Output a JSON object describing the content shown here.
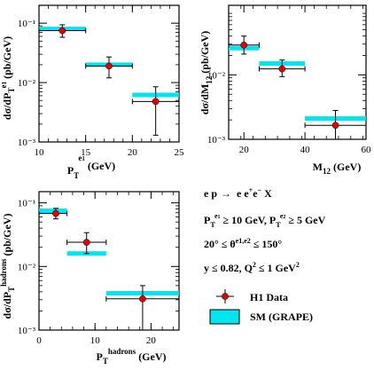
{
  "colors": {
    "data": "#e60000",
    "prediction": "#00e5f0",
    "axes": "#000000"
  },
  "chart_data": [
    {
      "id": "et1",
      "type": "scatter",
      "xscale": "linear",
      "yscale": "log",
      "xlim": [
        10,
        25
      ],
      "ylim": [
        0.001,
        0.2
      ],
      "x_ticks": [
        "10",
        "15",
        "20",
        "25"
      ],
      "y_ticks": [
        "10⁻³",
        "10⁻²",
        "10⁻¹"
      ],
      "xlabel": "P_T^{e1} (GeV)",
      "ylabel": "dσ/dP_T^{e1} (pb/GeV)",
      "series": [
        {
          "name": "H1 Data",
          "points": [
            {
              "x": 12.5,
              "y": 0.075,
              "xlo": 10,
              "xhi": 15,
              "ylo": 0.058,
              "yhi": 0.094
            },
            {
              "x": 17.5,
              "y": 0.019,
              "xlo": 15,
              "xhi": 20,
              "ylo": 0.012,
              "yhi": 0.027
            },
            {
              "x": 22.5,
              "y": 0.0048,
              "xlo": 20,
              "xhi": 25,
              "ylo": 0.0013,
              "yhi": 0.0085
            }
          ]
        },
        {
          "name": "SM (GRAPE)",
          "bins": [
            {
              "xlo": 10,
              "xhi": 15,
              "y": 0.08
            },
            {
              "xlo": 15,
              "xhi": 20,
              "y": 0.02
            },
            {
              "xlo": 20,
              "xhi": 25,
              "y": 0.0062
            }
          ]
        }
      ]
    },
    {
      "id": "m12",
      "type": "scatter",
      "xscale": "linear",
      "yscale": "log",
      "xlim": [
        15,
        60
      ],
      "ylim": [
        0.001,
        0.12
      ],
      "x_ticks": [
        "20",
        "40",
        "60"
      ],
      "y_ticks": [
        "10⁻³",
        "10⁻²"
      ],
      "xlabel": "M_12 (GeV)",
      "ylabel": "dσ/dM_12 (pb/GeV)",
      "series": [
        {
          "name": "H1 Data",
          "points": [
            {
              "x": 20,
              "y": 0.029,
              "xlo": 15,
              "xhi": 25,
              "ylo": 0.021,
              "yhi": 0.04
            },
            {
              "x": 32.5,
              "y": 0.0124,
              "xlo": 25,
              "xhi": 40,
              "ylo": 0.0094,
              "yhi": 0.017
            },
            {
              "x": 50,
              "y": 0.00165,
              "xlo": 40,
              "xhi": 60,
              "ylo": 0.001,
              "yhi": 0.0028
            }
          ]
        },
        {
          "name": "SM (GRAPE)",
          "bins": [
            {
              "xlo": 15,
              "xhi": 25,
              "y": 0.026
            },
            {
              "xlo": 25,
              "xhi": 40,
              "y": 0.015
            },
            {
              "xlo": 40,
              "xhi": 60,
              "y": 0.0021
            }
          ]
        }
      ]
    },
    {
      "id": "had",
      "type": "scatter",
      "xscale": "linear",
      "yscale": "log",
      "xlim": [
        0,
        25
      ],
      "ylim": [
        0.001,
        0.15
      ],
      "x_ticks": [
        "0",
        "10",
        "20"
      ],
      "y_ticks": [
        "10⁻³",
        "10⁻²",
        "10⁻¹"
      ],
      "xlabel": "P_T^{hadrons} (GeV)",
      "ylabel": "dσ/dP_T^{hadrons} (pb/GeV)",
      "series": [
        {
          "name": "H1 Data",
          "points": [
            {
              "x": 3,
              "y": 0.068,
              "xlo": 0,
              "xhi": 5,
              "ylo": 0.056,
              "yhi": 0.082
            },
            {
              "x": 8.5,
              "y": 0.024,
              "xlo": 5,
              "xhi": 12,
              "ylo": 0.016,
              "yhi": 0.034
            },
            {
              "x": 18.5,
              "y": 0.0031,
              "xlo": 12,
              "xhi": 25,
              "ylo": 0.001,
              "yhi": 0.005
            }
          ]
        },
        {
          "name": "SM (GRAPE)",
          "bins": [
            {
              "xlo": 0,
              "xhi": 5,
              "y": 0.075
            },
            {
              "xlo": 5,
              "xhi": 12,
              "y": 0.016
            },
            {
              "xlo": 12,
              "xhi": 25,
              "y": 0.0038
            }
          ]
        }
      ]
    }
  ],
  "annotation": {
    "process": "e p → e e⁺e⁻ X",
    "cut_pt": "P_T^{e1} ≥ 10 GeV, P_T^{e2} ≥ 5 GeV",
    "cut_theta": "20° ≤ θ^{e1,e2} ≤ 150°",
    "cut_y": "y ≤ 0.82, Q² ≤ 1 GeV²"
  },
  "legend": {
    "data_label": "H1 Data",
    "prediction_label": "SM (GRAPE)"
  }
}
